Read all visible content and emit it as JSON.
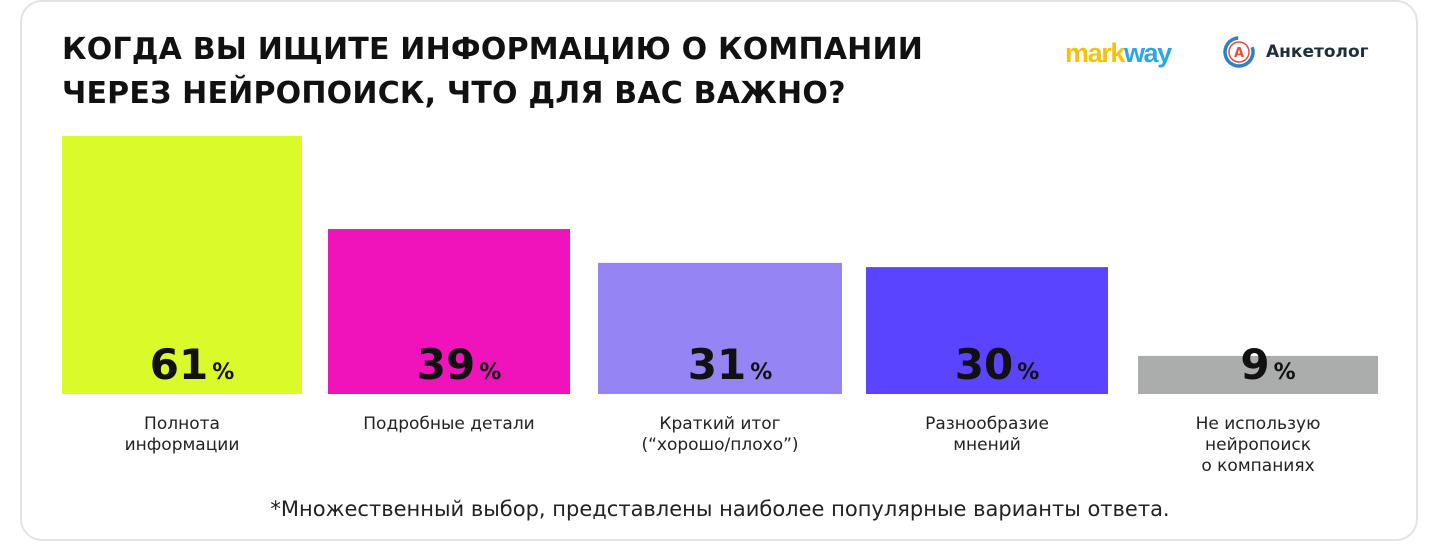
{
  "title_lines": [
    "КОГДА ВЫ ИЩИТЕ ИНФОРМАЦИЮ О КОМПАНИИ",
    "ЧЕРЕЗ НЕЙРОПОИСК, ЧТО ДЛЯ ВАС ВАЖНО?"
  ],
  "logos": {
    "markway": {
      "part1": "mark",
      "part2": "way"
    },
    "anketolog": {
      "icon_letter": "А",
      "text": "Анкетолог"
    }
  },
  "colors": {
    "bar_1": "#dbfa2a",
    "bar_2": "#f012bb",
    "bar_3": "#9584f4",
    "bar_4": "#5a44ff",
    "bar_5": "#abadac"
  },
  "chart_data": {
    "type": "bar",
    "categories": [
      "Полнота\nинформации",
      "Подробные детали",
      "Краткий итог\n(“хорошо/плохо”)",
      "Разнообразие\nмнений",
      "Не использую\nнейропоиск\nо компаниях"
    ],
    "values": [
      61,
      39,
      31,
      30,
      9
    ],
    "value_suffix": "%",
    "ylim": [
      0,
      61
    ],
    "grid": false
  },
  "footnote": "*Множественный выбор, представлены наиболее популярные варианты ответа."
}
